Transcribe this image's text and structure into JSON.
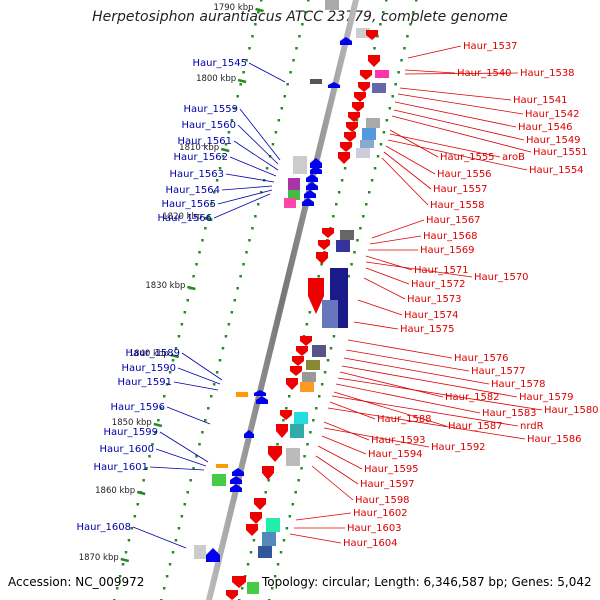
{
  "title": "Herpetosiphon aurantiacus ATCC 23779, complete genome",
  "footer": {
    "accession": "Accession: NC_009972",
    "topology": "Topology: circular; Length: 6,346,587 bp; Genes: 5,042"
  },
  "colors": {
    "left_label": "#0000aa",
    "right_label": "#dd0000",
    "tick": "#228b22",
    "backbone": "#888888"
  },
  "kbp_ticks": [
    "1790 kbp",
    "1800 kbp",
    "1810 kbp",
    "1820 kbp",
    "1830 kbp",
    "1840 kbp",
    "1850 kbp",
    "1860 kbp",
    "1870 kbp"
  ],
  "left_genes": [
    "Haur_1545",
    "Haur_1559",
    "Haur_1560",
    "Haur_1561",
    "Haur_1562",
    "Haur_1563",
    "Haur_1564",
    "Haur_1565",
    "Haur_1566",
    "Haur_1589",
    "Haur_1590",
    "Haur_1591",
    "Haur_1596",
    "Haur_1599",
    "Haur_1600",
    "Haur_1601",
    "Haur_1608"
  ],
  "right_genes": [
    "Haur_1537",
    "Haur_1540",
    "Haur_1538",
    "Haur_1541",
    "Haur_1542",
    "Haur_1546",
    "Haur_1549",
    "Haur_1551",
    "Haur_1555",
    "aroB",
    "Haur_1554",
    "Haur_1556",
    "Haur_1557",
    "Haur_1558",
    "Haur_1567",
    "Haur_1568",
    "Haur_1569",
    "Haur_1571",
    "Haur_1570",
    "Haur_1572",
    "Haur_1573",
    "Haur_1574",
    "Haur_1575",
    "Haur_1576",
    "Haur_1577",
    "Haur_1578",
    "Haur_1579",
    "Haur_1582",
    "Haur_1580",
    "Haur_1583",
    "Haur_1587",
    "Haur_1588",
    "nrdR",
    "Haur_1586",
    "Haur_1593",
    "Haur_1592",
    "Haur_1594",
    "Haur_1595",
    "Haur_1597",
    "Haur_1598",
    "Haur_1602",
    "Haur_1603",
    "Haur_1604"
  ]
}
